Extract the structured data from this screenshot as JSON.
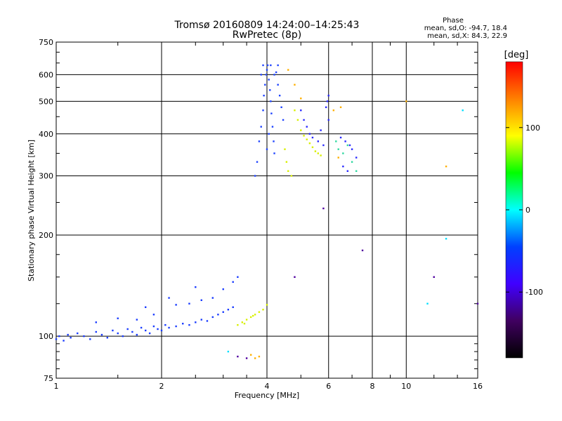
{
  "chart_data": {
    "type": "scatter",
    "title": "Tromsø 20160809 14:24:00–14:25:43",
    "subtitle": "RwPretec (8p)",
    "xlabel": "Frequency [MHz]",
    "ylabel": "Stationary phase Virtual Height [km]",
    "xscale": "log",
    "yscale": "log",
    "xlim": [
      1,
      16
    ],
    "ylim": [
      75,
      750
    ],
    "x_ticks": [
      1,
      2,
      4,
      6,
      8,
      10,
      16
    ],
    "y_ticks": [
      75,
      100,
      200,
      300,
      400,
      500,
      600,
      750
    ],
    "x_grid": [
      2,
      4,
      6,
      8,
      10
    ],
    "y_grid": [
      100,
      200,
      300,
      400,
      500,
      600
    ],
    "grid": true,
    "phase_box": {
      "title": "Phase",
      "line1": "mean, sd,O: -94.7, 18.4",
      "line2": "mean, sd,X:  84.3, 22.9"
    },
    "colorbar": {
      "label": "[deg]",
      "ticks": [
        100,
        0,
        -100
      ],
      "range": [
        -180,
        180
      ],
      "colors_top_to_bottom": [
        "#ff0000",
        "#ff8000",
        "#ffff00",
        "#00ff00",
        "#00ffff",
        "#0040ff",
        "#4000ff",
        "#400060",
        "#000000"
      ]
    },
    "series": [
      {
        "color": "#1a3cff",
        "points": [
          [
            1.0,
            98
          ],
          [
            1.02,
            100
          ],
          [
            1.05,
            97
          ],
          [
            1.08,
            101
          ],
          [
            1.1,
            99
          ],
          [
            1.15,
            102
          ],
          [
            1.2,
            100
          ],
          [
            1.25,
            98
          ],
          [
            1.3,
            103
          ],
          [
            1.35,
            101
          ],
          [
            1.4,
            99
          ],
          [
            1.45,
            104
          ],
          [
            1.5,
            102
          ],
          [
            1.55,
            100
          ],
          [
            1.6,
            105
          ],
          [
            1.65,
            103
          ],
          [
            1.7,
            101
          ],
          [
            1.75,
            106
          ],
          [
            1.8,
            104
          ],
          [
            1.85,
            102
          ],
          [
            1.9,
            107
          ],
          [
            1.95,
            105
          ],
          [
            2.0,
            104
          ],
          [
            2.05,
            108
          ],
          [
            2.1,
            106
          ],
          [
            2.2,
            107
          ],
          [
            2.3,
            109
          ],
          [
            2.4,
            108
          ],
          [
            2.5,
            110
          ],
          [
            2.6,
            112
          ],
          [
            2.7,
            111
          ],
          [
            2.8,
            114
          ],
          [
            2.9,
            116
          ],
          [
            3.0,
            118
          ],
          [
            3.1,
            120
          ],
          [
            3.2,
            122
          ],
          [
            1.3,
            110
          ],
          [
            1.5,
            113
          ],
          [
            1.7,
            112
          ],
          [
            1.9,
            116
          ],
          [
            2.2,
            124
          ],
          [
            2.4,
            125
          ],
          [
            2.6,
            128
          ],
          [
            2.8,
            130
          ],
          [
            3.0,
            138
          ],
          [
            3.2,
            145
          ],
          [
            1.8,
            122
          ],
          [
            2.1,
            130
          ],
          [
            2.5,
            140
          ],
          [
            3.3,
            150
          ]
        ]
      },
      {
        "color": "#1f44ff",
        "points": [
          [
            3.7,
            300
          ],
          [
            3.75,
            330
          ],
          [
            3.8,
            380
          ],
          [
            3.85,
            420
          ],
          [
            3.9,
            470
          ],
          [
            3.92,
            520
          ],
          [
            3.95,
            560
          ],
          [
            3.98,
            600
          ],
          [
            4.0,
            620
          ],
          [
            4.02,
            640
          ],
          [
            4.05,
            580
          ],
          [
            4.08,
            540
          ],
          [
            4.1,
            500
          ],
          [
            4.12,
            460
          ],
          [
            4.15,
            420
          ],
          [
            4.18,
            380
          ],
          [
            4.2,
            350
          ],
          [
            4.25,
            610
          ],
          [
            4.3,
            560
          ],
          [
            4.35,
            520
          ],
          [
            4.4,
            480
          ],
          [
            4.45,
            440
          ],
          [
            4.0,
            360
          ],
          [
            4.05,
            400
          ],
          [
            4.1,
            640
          ],
          [
            3.85,
            600
          ],
          [
            3.9,
            640
          ],
          [
            4.2,
            600
          ],
          [
            4.3,
            640
          ]
        ]
      },
      {
        "color": "#2a2aff",
        "points": [
          [
            5.0,
            470
          ],
          [
            5.1,
            440
          ],
          [
            5.2,
            420
          ],
          [
            5.3,
            400
          ],
          [
            5.4,
            390
          ],
          [
            5.6,
            380
          ],
          [
            5.8,
            370
          ],
          [
            5.9,
            480
          ],
          [
            5.95,
            500
          ],
          [
            6.0,
            520
          ],
          [
            6.0,
            440
          ],
          [
            5.7,
            410
          ],
          [
            6.5,
            390
          ],
          [
            6.7,
            380
          ],
          [
            6.9,
            370
          ],
          [
            7.0,
            360
          ],
          [
            7.2,
            340
          ],
          [
            6.6,
            320
          ],
          [
            6.8,
            310
          ]
        ]
      },
      {
        "color": "#d8f000",
        "points": [
          [
            4.5,
            360
          ],
          [
            4.55,
            330
          ],
          [
            4.6,
            310
          ],
          [
            4.7,
            300
          ],
          [
            4.8,
            470
          ],
          [
            4.9,
            440
          ],
          [
            5.0,
            410
          ],
          [
            5.1,
            395
          ],
          [
            5.2,
            385
          ],
          [
            5.3,
            375
          ],
          [
            5.4,
            365
          ],
          [
            5.5,
            355
          ],
          [
            5.6,
            350
          ],
          [
            5.7,
            345
          ],
          [
            3.3,
            108
          ],
          [
            3.4,
            110
          ],
          [
            3.5,
            112
          ],
          [
            3.6,
            114
          ],
          [
            3.7,
            116
          ],
          [
            3.8,
            118
          ],
          [
            3.9,
            120
          ],
          [
            4.0,
            124
          ],
          [
            3.45,
            109
          ],
          [
            3.65,
            115
          ]
        ]
      },
      {
        "color": "#ffb000",
        "points": [
          [
            4.6,
            620
          ],
          [
            4.8,
            560
          ],
          [
            5.0,
            510
          ],
          [
            6.2,
            470
          ],
          [
            6.5,
            480
          ],
          [
            6.4,
            340
          ],
          [
            3.6,
            88
          ],
          [
            3.7,
            86
          ],
          [
            3.8,
            87
          ],
          [
            10.0,
            500
          ],
          [
            13.0,
            320
          ]
        ]
      },
      {
        "color": "#30d8a0",
        "points": [
          [
            6.3,
            380
          ],
          [
            6.4,
            360
          ],
          [
            6.6,
            350
          ],
          [
            6.8,
            370
          ],
          [
            7.0,
            330
          ],
          [
            7.2,
            310
          ]
        ]
      },
      {
        "color": "#00e0ff",
        "points": [
          [
            11.5,
            125
          ],
          [
            13.0,
            195
          ],
          [
            14.5,
            470
          ],
          [
            3.1,
            90
          ]
        ]
      },
      {
        "color": "#5000a0",
        "points": [
          [
            5.8,
            240
          ],
          [
            3.3,
            87
          ],
          [
            3.5,
            86
          ],
          [
            4.8,
            150
          ],
          [
            7.5,
            180
          ],
          [
            12.0,
            150
          ],
          [
            16.0,
            125
          ]
        ]
      }
    ]
  }
}
